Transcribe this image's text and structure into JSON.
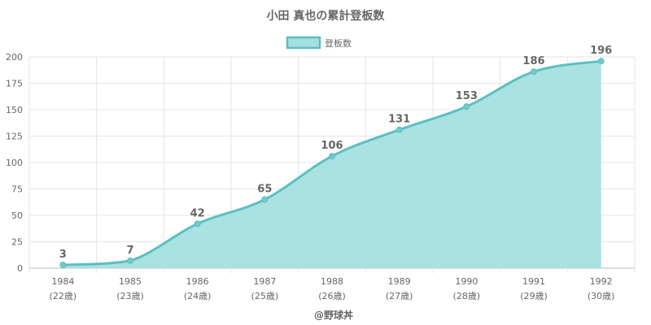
{
  "chart_data": {
    "type": "area",
    "title": "小田 真也の累計登板数",
    "legend": {
      "label": "登板数",
      "position": "top"
    },
    "categories": [
      "1984",
      "1985",
      "1986",
      "1987",
      "1988",
      "1989",
      "1990",
      "1991",
      "1992"
    ],
    "category_sublabels": [
      "(22歳)",
      "(23歳)",
      "(24歳)",
      "(25歳)",
      "(26歳)",
      "(27歳)",
      "(28歳)",
      "(29歳)",
      "(30歳)"
    ],
    "series": [
      {
        "name": "登板数",
        "values": [
          3,
          7,
          42,
          65,
          106,
          131,
          153,
          186,
          196
        ]
      }
    ],
    "ylim": [
      0,
      200
    ],
    "yticks": [
      0,
      25,
      50,
      75,
      100,
      125,
      150,
      175,
      200
    ],
    "grid": true,
    "colors": {
      "line": "#5bc0c0",
      "fill": "#a5dfdf",
      "point": "#6fcaca",
      "text": "#666666",
      "grid": "#e5e5e5",
      "axis": "#bbbbbb"
    }
  },
  "credit": "@野球丼"
}
